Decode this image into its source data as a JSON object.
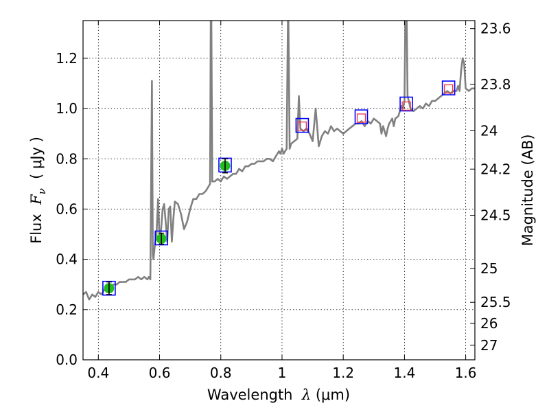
{
  "chart_data": {
    "type": "line",
    "xlabel": {
      "prefix": "Wavelength  ",
      "symbol": "λ",
      "unit": " (μm)"
    },
    "ylabel": {
      "prefix": "Flux  ",
      "symbol": "F",
      "subscript": "ν",
      "unit": "  ( μJy )"
    },
    "y2label": "Magnitude (AB)",
    "xlim": [
      0.35,
      1.63
    ],
    "ylim": [
      0.0,
      1.35
    ],
    "x_ticks": [
      0.4,
      0.6,
      0.8,
      1.0,
      1.2,
      1.4,
      1.6
    ],
    "x_tick_labels": [
      "0.4",
      "0.6",
      "0.8",
      "1",
      "1.2",
      "1.4",
      "1.6"
    ],
    "y_ticks": [
      0.0,
      0.2,
      0.4,
      0.6,
      0.8,
      1.0,
      1.2
    ],
    "y_tick_labels": [
      "0.0",
      "0.2",
      "0.4",
      "0.6",
      "0.8",
      "1.0",
      "1.2"
    ],
    "y2_ticks": [
      {
        "label": "23.6",
        "flux": 1.318
      },
      {
        "label": "23.8",
        "flux": 1.096
      },
      {
        "label": "24",
        "flux": 0.912
      },
      {
        "label": "24.2",
        "flux": 0.759
      },
      {
        "label": "24.5",
        "flux": 0.575
      },
      {
        "label": "25",
        "flux": 0.363
      },
      {
        "label": "25.5",
        "flux": 0.229
      },
      {
        "label": "26",
        "flux": 0.145
      },
      {
        "label": "27",
        "flux": 0.058
      }
    ],
    "grid": true,
    "colors": {
      "sed": "#808080",
      "observed": "#22bb22",
      "model_box": "#0000ff",
      "open_box": "#ee3344",
      "error": "#000000"
    },
    "model_sed": [
      [
        0.35,
        0.26
      ],
      [
        0.36,
        0.27
      ],
      [
        0.37,
        0.24
      ],
      [
        0.38,
        0.26
      ],
      [
        0.39,
        0.25
      ],
      [
        0.4,
        0.27
      ],
      [
        0.41,
        0.26
      ],
      [
        0.42,
        0.28
      ],
      [
        0.43,
        0.27
      ],
      [
        0.44,
        0.29
      ],
      [
        0.45,
        0.3
      ],
      [
        0.46,
        0.3
      ],
      [
        0.47,
        0.31
      ],
      [
        0.48,
        0.31
      ],
      [
        0.49,
        0.31
      ],
      [
        0.5,
        0.32
      ],
      [
        0.51,
        0.32
      ],
      [
        0.52,
        0.32
      ],
      [
        0.53,
        0.33
      ],
      [
        0.54,
        0.32
      ],
      [
        0.55,
        0.33
      ],
      [
        0.56,
        0.32
      ],
      [
        0.565,
        0.33
      ],
      [
        0.57,
        0.32
      ],
      [
        0.575,
        1.11
      ],
      [
        0.578,
        0.42
      ],
      [
        0.58,
        0.4
      ],
      [
        0.585,
        0.46
      ],
      [
        0.59,
        0.5
      ],
      [
        0.595,
        0.64
      ],
      [
        0.6,
        0.48
      ],
      [
        0.605,
        0.52
      ],
      [
        0.61,
        0.6
      ],
      [
        0.615,
        0.62
      ],
      [
        0.62,
        0.55
      ],
      [
        0.625,
        0.47
      ],
      [
        0.63,
        0.6
      ],
      [
        0.635,
        0.61
      ],
      [
        0.64,
        0.47
      ],
      [
        0.645,
        0.56
      ],
      [
        0.65,
        0.63
      ],
      [
        0.66,
        0.62
      ],
      [
        0.67,
        0.58
      ],
      [
        0.68,
        0.52
      ],
      [
        0.69,
        0.55
      ],
      [
        0.7,
        0.6
      ],
      [
        0.71,
        0.64
      ],
      [
        0.72,
        0.64
      ],
      [
        0.73,
        0.66
      ],
      [
        0.74,
        0.66
      ],
      [
        0.75,
        0.67
      ],
      [
        0.755,
        0.68
      ],
      [
        0.76,
        0.69
      ],
      [
        0.765,
        0.7
      ],
      [
        0.768,
        1.6
      ],
      [
        0.772,
        0.71
      ],
      [
        0.78,
        0.71
      ],
      [
        0.79,
        0.72
      ],
      [
        0.8,
        0.71
      ],
      [
        0.81,
        0.73
      ],
      [
        0.82,
        0.72
      ],
      [
        0.83,
        0.73
      ],
      [
        0.84,
        0.74
      ],
      [
        0.85,
        0.74
      ],
      [
        0.86,
        0.76
      ],
      [
        0.87,
        0.75
      ],
      [
        0.88,
        0.77
      ],
      [
        0.89,
        0.77
      ],
      [
        0.9,
        0.78
      ],
      [
        0.91,
        0.78
      ],
      [
        0.92,
        0.79
      ],
      [
        0.93,
        0.79
      ],
      [
        0.94,
        0.79
      ],
      [
        0.95,
        0.8
      ],
      [
        0.96,
        0.8
      ],
      [
        0.97,
        0.79
      ],
      [
        0.98,
        0.81
      ],
      [
        0.99,
        0.83
      ],
      [
        0.995,
        0.82
      ],
      [
        1.0,
        0.84
      ],
      [
        1.005,
        0.82
      ],
      [
        1.01,
        0.83
      ],
      [
        1.015,
        0.84
      ],
      [
        1.02,
        1.45
      ],
      [
        1.025,
        0.84
      ],
      [
        1.03,
        0.86
      ],
      [
        1.04,
        0.87
      ],
      [
        1.05,
        0.88
      ],
      [
        1.055,
        1.05
      ],
      [
        1.06,
        0.92
      ],
      [
        1.07,
        0.91
      ],
      [
        1.08,
        0.92
      ],
      [
        1.09,
        0.9
      ],
      [
        1.1,
        0.87
      ],
      [
        1.11,
        1.0
      ],
      [
        1.12,
        0.85
      ],
      [
        1.13,
        0.89
      ],
      [
        1.14,
        0.91
      ],
      [
        1.15,
        0.9
      ],
      [
        1.16,
        0.93
      ],
      [
        1.17,
        0.91
      ],
      [
        1.18,
        0.92
      ],
      [
        1.19,
        0.91
      ],
      [
        1.2,
        0.9
      ],
      [
        1.21,
        0.91
      ],
      [
        1.22,
        0.92
      ],
      [
        1.23,
        0.93
      ],
      [
        1.24,
        0.94
      ],
      [
        1.25,
        0.94
      ],
      [
        1.26,
        0.95
      ],
      [
        1.27,
        0.93
      ],
      [
        1.28,
        0.95
      ],
      [
        1.29,
        0.94
      ],
      [
        1.3,
        0.96
      ],
      [
        1.31,
        0.95
      ],
      [
        1.32,
        0.94
      ],
      [
        1.325,
        0.9
      ],
      [
        1.33,
        0.93
      ],
      [
        1.34,
        0.89
      ],
      [
        1.345,
        0.92
      ],
      [
        1.35,
        0.94
      ],
      [
        1.36,
        0.96
      ],
      [
        1.365,
        0.93
      ],
      [
        1.37,
        0.96
      ],
      [
        1.38,
        0.97
      ],
      [
        1.385,
        0.99
      ],
      [
        1.39,
        1.01
      ],
      [
        1.395,
        1.0
      ],
      [
        1.4,
        1.03
      ],
      [
        1.405,
        1.6
      ],
      [
        1.41,
        1.05
      ],
      [
        1.42,
        1.0
      ],
      [
        1.43,
        0.99
      ],
      [
        1.44,
        1.0
      ],
      [
        1.45,
        1.01
      ],
      [
        1.46,
        1.0
      ],
      [
        1.47,
        1.02
      ],
      [
        1.48,
        1.01
      ],
      [
        1.49,
        1.03
      ],
      [
        1.5,
        1.03
      ],
      [
        1.51,
        1.04
      ],
      [
        1.52,
        1.05
      ],
      [
        1.53,
        1.06
      ],
      [
        1.54,
        1.07
      ],
      [
        1.55,
        1.06
      ],
      [
        1.56,
        1.07
      ],
      [
        1.57,
        1.07
      ],
      [
        1.575,
        1.09
      ],
      [
        1.58,
        1.07
      ],
      [
        1.585,
        1.15
      ],
      [
        1.59,
        1.2
      ],
      [
        1.595,
        1.18
      ],
      [
        1.6,
        1.08
      ],
      [
        1.61,
        1.07
      ],
      [
        1.62,
        1.08
      ],
      [
        1.63,
        1.08
      ]
    ],
    "model_photometry": [
      {
        "x": 0.435,
        "y": 0.285
      },
      {
        "x": 0.606,
        "y": 0.485
      },
      {
        "x": 0.814,
        "y": 0.775
      },
      {
        "x": 1.066,
        "y": 0.933
      },
      {
        "x": 1.259,
        "y": 0.967
      },
      {
        "x": 1.406,
        "y": 1.018
      },
      {
        "x": 1.544,
        "y": 1.082
      }
    ],
    "observed_photometry": [
      {
        "x": 0.435,
        "y": 0.285,
        "yerr": 0.025
      },
      {
        "x": 0.606,
        "y": 0.482,
        "yerr": 0.022
      },
      {
        "x": 0.814,
        "y": 0.772,
        "yerr": 0.028
      }
    ],
    "open_boxes": [
      {
        "x": 1.066,
        "y": 0.93
      },
      {
        "x": 1.259,
        "y": 0.962
      },
      {
        "x": 1.406,
        "y": 1.01
      },
      {
        "x": 1.544,
        "y": 1.078
      }
    ]
  }
}
